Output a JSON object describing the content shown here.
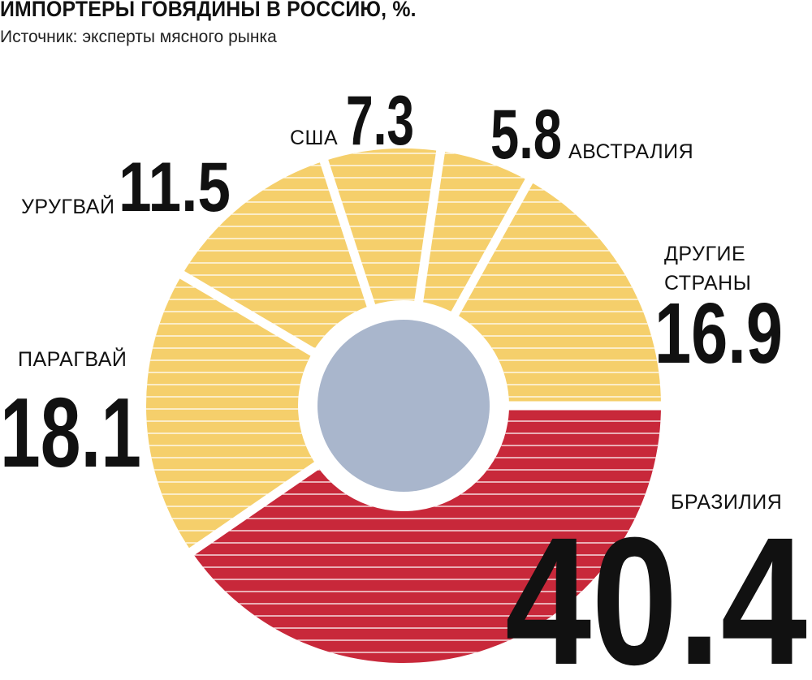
{
  "title": "ИМПОРТЕРЫ ГОВЯДИНЫ В РОССИЮ, %.",
  "subtitle": "Источник: эксперты мясного рынка",
  "colors": {
    "highlight": "#c8283a",
    "other": "#f5cf6b",
    "center": "#a9b6cc",
    "stripe": "#ffffff"
  },
  "chart_data": {
    "type": "pie",
    "title": "ИМПОРТЕРЫ ГОВЯДИНЫ В РОССИЮ, %.",
    "slices": [
      {
        "label": "БРАЗИЛИЯ",
        "value": 40.4,
        "value_label": "40.4",
        "highlight": true
      },
      {
        "label": "ПАРАГВАЙ",
        "value": 18.1,
        "value_label": "18.1",
        "highlight": false
      },
      {
        "label": "УРУГВАЙ",
        "value": 11.5,
        "value_label": "11.5",
        "highlight": false
      },
      {
        "label": "США",
        "value": 7.3,
        "value_label": "7.3",
        "highlight": false
      },
      {
        "label": "АВСТРАЛИЯ",
        "value": 5.8,
        "value_label": "5.8",
        "highlight": false
      },
      {
        "label": "ДРУГИЕ СТРАНЫ",
        "label_lines": [
          "ДРУГИЕ",
          "СТРАНЫ"
        ],
        "value": 16.9,
        "value_label": "16.9",
        "highlight": false
      }
    ],
    "unit": "%",
    "legend": "none"
  }
}
